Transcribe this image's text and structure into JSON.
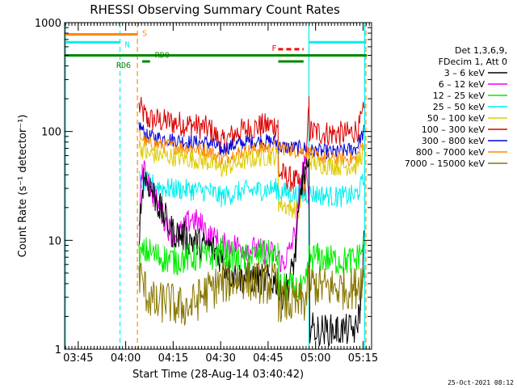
{
  "chart_data": {
    "type": "line",
    "title": "RHESSI Observing Summary Count Rates",
    "xlabel": "Start Time (28-Aug-14 03:40:42)",
    "ylabel": "Count Rate (s⁻¹ detector⁻¹)",
    "y_scale": "log",
    "ylim": [
      1,
      1000
    ],
    "xlim_minutes": [
      0,
      97
    ],
    "x_ticks": [
      {
        "label": "03:45",
        "minute": 4.3
      },
      {
        "label": "04:00",
        "minute": 19.3
      },
      {
        "label": "04:15",
        "minute": 34.3
      },
      {
        "label": "04:30",
        "minute": 49.3
      },
      {
        "label": "04:45",
        "minute": 64.3
      },
      {
        "label": "05:00",
        "minute": 79.3
      },
      {
        "label": "05:15",
        "minute": 94.3
      }
    ],
    "y_ticks": [
      "1",
      "10",
      "100",
      "1000"
    ],
    "timestamp": "25-Oct-2021 08:12",
    "legend": {
      "placement": "right",
      "header": [
        "Det 1,3,6,9,",
        "FDecim 1, Att 0"
      ],
      "entries": [
        {
          "label": "3 – 6 keV",
          "color": "#000000"
        },
        {
          "label": "6 – 12 keV",
          "color": "#ee00ee"
        },
        {
          "label": "12 – 25 keV",
          "color": "#00ee00"
        },
        {
          "label": "25 – 50 keV",
          "color": "#00eeee"
        },
        {
          "label": "50 – 100 keV",
          "color": "#ddcc00"
        },
        {
          "label": "100 – 300 keV",
          "color": "#dd0000"
        },
        {
          "label": "300 – 800 keV",
          "color": "#0000dd"
        },
        {
          "label": "800 – 7000 keV",
          "color": "#ff8800"
        },
        {
          "label": "7000 – 15000 keV",
          "color": "#887700"
        }
      ]
    },
    "flags": [
      {
        "label": "S",
        "color": "#ff8800",
        "y": 780,
        "segments": [
          [
            0,
            23
          ]
        ]
      },
      {
        "label": "N",
        "color": "#00eeee",
        "y": 660,
        "segments": [
          [
            0,
            17.5
          ],
          [
            77.2,
            95.2
          ]
        ]
      },
      {
        "label": "F",
        "color": "#ff0000",
        "y": 570,
        "dashed": true,
        "segments": [
          [
            67.5,
            75.5
          ]
        ]
      },
      {
        "label": "RD0",
        "color": "#008800",
        "y": 500,
        "segments": [
          [
            0,
            95.5
          ]
        ]
      },
      {
        "label": "RD6",
        "color": "#008800",
        "y": 440,
        "segments": [
          [
            24.5,
            27
          ],
          [
            67.5,
            75.5
          ]
        ]
      }
    ],
    "vlines": [
      {
        "minute": 0.3,
        "color": "#00eeee",
        "style": "solid"
      },
      {
        "minute": 17.5,
        "color": "#00eeee",
        "style": "dashed"
      },
      {
        "minute": 23.0,
        "color": "#ff8800",
        "style": "dashed"
      },
      {
        "minute": 77.2,
        "color": "#00eeee",
        "style": "solid"
      },
      {
        "minute": 94.8,
        "color": "#00eeee",
        "style": "solid"
      },
      {
        "minute": 95.2,
        "color": "#ff8800",
        "style": "dashed"
      }
    ],
    "data_gaps": [
      [
        0.3,
        23.5
      ],
      [
        94.8,
        97
      ]
    ],
    "series": [
      {
        "name": "100 – 300 keV",
        "color": "#dd0000",
        "noise": 0.12,
        "points": [
          [
            23.5,
            170
          ],
          [
            26,
            130
          ],
          [
            40,
            115
          ],
          [
            46,
            105
          ],
          [
            49.5,
            78
          ],
          [
            55,
            100
          ],
          [
            62,
            112
          ],
          [
            67.4,
            115
          ],
          [
            67.6,
            42
          ],
          [
            74,
            33
          ],
          [
            76,
            30
          ],
          [
            77.2,
            170
          ],
          [
            77.4,
            100
          ],
          [
            84,
            96
          ],
          [
            90,
            95
          ],
          [
            93,
            108
          ],
          [
            94.6,
            150
          ]
        ]
      },
      {
        "name": "300 – 800 keV",
        "color": "#0000dd",
        "noise": 0.07,
        "points": [
          [
            23.5,
            115
          ],
          [
            26,
            90
          ],
          [
            40,
            80
          ],
          [
            46,
            78
          ],
          [
            49.5,
            68
          ],
          [
            55,
            78
          ],
          [
            62,
            82
          ],
          [
            67.4,
            80
          ],
          [
            67.6,
            72
          ],
          [
            76,
            70
          ],
          [
            77.2,
            66
          ],
          [
            80,
            66
          ],
          [
            86,
            64
          ],
          [
            92,
            70
          ],
          [
            94.6,
            100
          ]
        ]
      },
      {
        "name": "800 – 7000 keV",
        "color": "#ff8800",
        "noise": 0.07,
        "points": [
          [
            23.5,
            95
          ],
          [
            26,
            78
          ],
          [
            40,
            70
          ],
          [
            46,
            66
          ],
          [
            49.5,
            55
          ],
          [
            55,
            64
          ],
          [
            62,
            70
          ],
          [
            67.4,
            72
          ],
          [
            72,
            68
          ],
          [
            77.2,
            64
          ],
          [
            80,
            58
          ],
          [
            86,
            56
          ],
          [
            92,
            56
          ],
          [
            94.6,
            80
          ]
        ]
      },
      {
        "name": "50 – 100 keV",
        "color": "#ddcc00",
        "noise": 0.09,
        "points": [
          [
            23.5,
            75
          ],
          [
            26,
            62
          ],
          [
            40,
            56
          ],
          [
            46,
            52
          ],
          [
            49.5,
            45
          ],
          [
            55,
            52
          ],
          [
            62,
            58
          ],
          [
            67.4,
            60
          ],
          [
            67.6,
            22
          ],
          [
            71,
            20
          ],
          [
            74,
            19
          ],
          [
            77.2,
            55
          ],
          [
            80,
            50
          ],
          [
            86,
            48
          ],
          [
            92,
            48
          ],
          [
            94.6,
            66
          ]
        ]
      },
      {
        "name": "25 – 50 keV",
        "color": "#00eeee",
        "noise": 0.1,
        "points": [
          [
            23.5,
            36
          ],
          [
            26,
            34
          ],
          [
            32,
            30
          ],
          [
            40,
            29
          ],
          [
            46,
            28
          ],
          [
            49.5,
            25
          ],
          [
            55,
            28
          ],
          [
            62,
            29
          ],
          [
            67.4,
            30
          ],
          [
            67.6,
            28
          ],
          [
            76,
            26
          ],
          [
            77.2,
            27
          ],
          [
            86,
            25
          ],
          [
            92,
            26
          ],
          [
            94.6,
            35
          ]
        ]
      },
      {
        "name": "6 – 12 keV",
        "color": "#ee00ee",
        "noise": 0.12,
        "points": [
          [
            23.5,
            15
          ],
          [
            24.5,
            45
          ],
          [
            26,
            38
          ],
          [
            28,
            26
          ],
          [
            31,
            17
          ],
          [
            34,
            11
          ],
          [
            37,
            12
          ],
          [
            40,
            16
          ],
          [
            43,
            14
          ],
          [
            46,
            11
          ],
          [
            48,
            10
          ],
          [
            50,
            9
          ],
          [
            54,
            9
          ],
          [
            58,
            8.5
          ],
          [
            62,
            8
          ],
          [
            66,
            7.5
          ],
          [
            67.4,
            7
          ],
          [
            69,
            6
          ],
          [
            71,
            8
          ],
          [
            73,
            12
          ],
          [
            75,
            40
          ],
          [
            76,
            55
          ],
          [
            77.2,
            20
          ]
        ]
      },
      {
        "name": "3 – 6 keV",
        "color": "#000000",
        "noise": 0.15,
        "points": [
          [
            23.5,
            12
          ],
          [
            25,
            40
          ],
          [
            27,
            32
          ],
          [
            30,
            20
          ],
          [
            34,
            12
          ],
          [
            40,
            10
          ],
          [
            44,
            9
          ],
          [
            48,
            8
          ],
          [
            52,
            5
          ],
          [
            56,
            4.5
          ],
          [
            60,
            4.5
          ],
          [
            64,
            4.3
          ],
          [
            67.4,
            4.2
          ],
          [
            68,
            3
          ],
          [
            71,
            4
          ],
          [
            73,
            8
          ],
          [
            75,
            35
          ],
          [
            76,
            42
          ],
          [
            77.2,
            40
          ],
          [
            77.5,
            1.6
          ],
          [
            80,
            1.5
          ],
          [
            86,
            1.5
          ],
          [
            92,
            1.5
          ],
          [
            93.5,
            2.5
          ],
          [
            94.6,
            10
          ]
        ]
      },
      {
        "name": "12 – 25 keV",
        "color": "#00ee00",
        "noise": 0.14,
        "points": [
          [
            23.5,
            7
          ],
          [
            26,
            8
          ],
          [
            30,
            7
          ],
          [
            35,
            6.5
          ],
          [
            40,
            7
          ],
          [
            46,
            7
          ],
          [
            50,
            8
          ],
          [
            55,
            6.5
          ],
          [
            62,
            7.5
          ],
          [
            67.4,
            7
          ],
          [
            67.6,
            3.8
          ],
          [
            72,
            3.6
          ],
          [
            76,
            3.5
          ],
          [
            77.2,
            7
          ],
          [
            80,
            7
          ],
          [
            86,
            6.5
          ],
          [
            92,
            6.5
          ],
          [
            94.6,
            9
          ]
        ]
      },
      {
        "name": "7000 – 15000 keV",
        "color": "#887700",
        "noise": 0.2,
        "points": [
          [
            23.5,
            5
          ],
          [
            26,
            3.2
          ],
          [
            29,
            2.5
          ],
          [
            32,
            2.8
          ],
          [
            36,
            2.4
          ],
          [
            40,
            2.5
          ],
          [
            44,
            3.2
          ],
          [
            48,
            3.8
          ],
          [
            52,
            4.2
          ],
          [
            56,
            4.5
          ],
          [
            60,
            4.2
          ],
          [
            64,
            4.0
          ],
          [
            67.4,
            4.0
          ],
          [
            67.6,
            2.8
          ],
          [
            72,
            2.6
          ],
          [
            76,
            2.7
          ],
          [
            77.2,
            4.0
          ],
          [
            82,
            3.7
          ],
          [
            88,
            3.6
          ],
          [
            92,
            3.7
          ],
          [
            94.6,
            5
          ]
        ]
      }
    ]
  }
}
